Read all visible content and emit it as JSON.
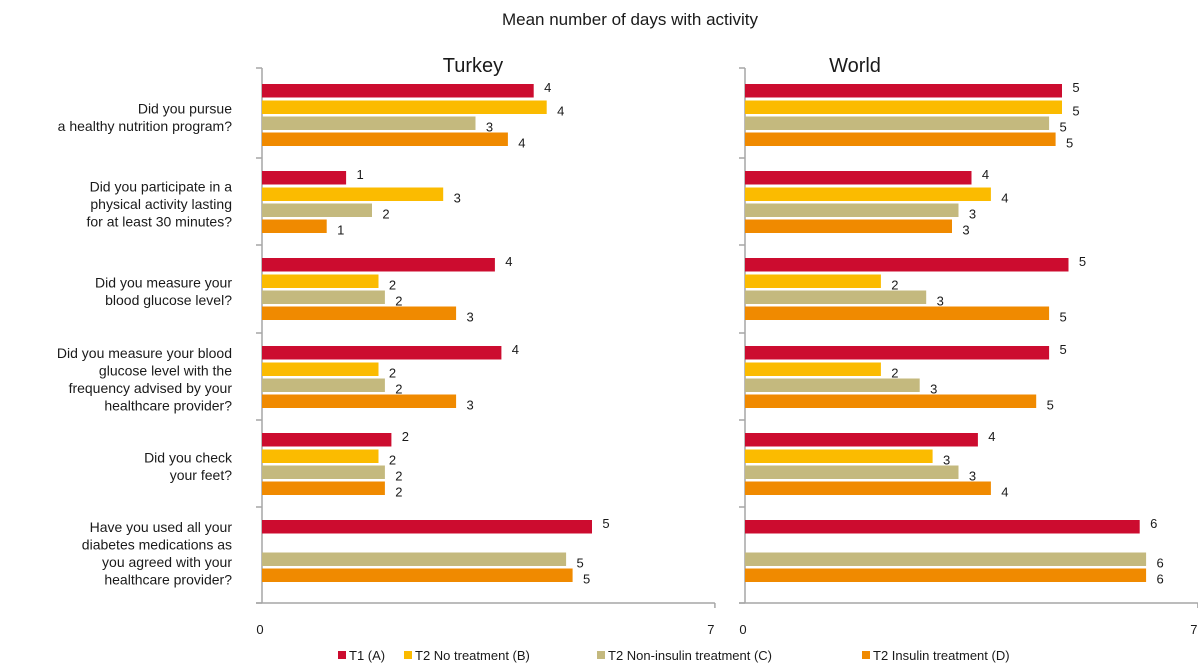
{
  "chart_data": {
    "type": "bar",
    "orientation": "horizontal",
    "title": "Mean number of days with activity",
    "panels": [
      "Turkey",
      "World"
    ],
    "categories": [
      [
        "Did you pursue",
        "a healthy nutrition program?"
      ],
      [
        "Did you participate in a",
        "physical activity lasting",
        "for at least 30 minutes?"
      ],
      [
        "Did you measure your",
        "blood glucose level?"
      ],
      [
        "Did you measure your blood",
        "glucose level with the",
        "frequency advised by your",
        "healthcare provider?"
      ],
      [
        "Did you check",
        "your feet?"
      ],
      [
        "Have you used all your",
        "diabetes medications as",
        "you agreed with your",
        "healthcare provider?"
      ]
    ],
    "series": [
      {
        "name": "T1 (A)",
        "color": "#cc0c2f"
      },
      {
        "name": "T2 No treatment (B)",
        "color": "#fbbb00"
      },
      {
        "name": "T2 Non-insulin treatment (C)",
        "color": "#c4b97e"
      },
      {
        "name": "T2 Insulin treatment  (D)",
        "color": "#f08a00"
      }
    ],
    "values": {
      "Turkey": [
        [
          4.2,
          4.4,
          3.3,
          3.8
        ],
        [
          1.3,
          2.8,
          1.7,
          1.0
        ],
        [
          3.6,
          1.8,
          1.9,
          3.0
        ],
        [
          3.7,
          1.8,
          1.9,
          3.0
        ],
        [
          2.0,
          1.8,
          1.9,
          1.9
        ],
        [
          5.1,
          null,
          4.7,
          4.8
        ]
      ],
      "World": [
        [
          4.9,
          4.9,
          4.7,
          4.8
        ],
        [
          3.5,
          3.8,
          3.3,
          3.2
        ],
        [
          5.0,
          2.1,
          2.8,
          4.7
        ],
        [
          4.7,
          2.1,
          2.7,
          4.5
        ],
        [
          3.6,
          2.9,
          3.3,
          3.8
        ],
        [
          6.1,
          null,
          6.2,
          6.2
        ]
      ]
    },
    "value_labels": {
      "Turkey": [
        [
          "4",
          "4",
          "3",
          "4"
        ],
        [
          "1",
          "3",
          "2",
          "1"
        ],
        [
          "4",
          "2",
          "2",
          "3"
        ],
        [
          "4",
          "2",
          "2",
          "3"
        ],
        [
          "2",
          "2",
          "2",
          "2"
        ],
        [
          "5",
          null,
          "5",
          "5"
        ]
      ],
      "World": [
        [
          "5",
          "5",
          "5",
          "5"
        ],
        [
          "4",
          "4",
          "3",
          "3"
        ],
        [
          "5",
          "2",
          "3",
          "5"
        ],
        [
          "5",
          "2",
          "3",
          "5"
        ],
        [
          "4",
          "3",
          "3",
          "4"
        ],
        [
          "6",
          null,
          "6",
          "6"
        ]
      ]
    },
    "xlim": [
      0,
      7
    ],
    "x_tick_labels": [
      "0",
      "7"
    ],
    "grid": false,
    "legend_position": "bottom"
  }
}
